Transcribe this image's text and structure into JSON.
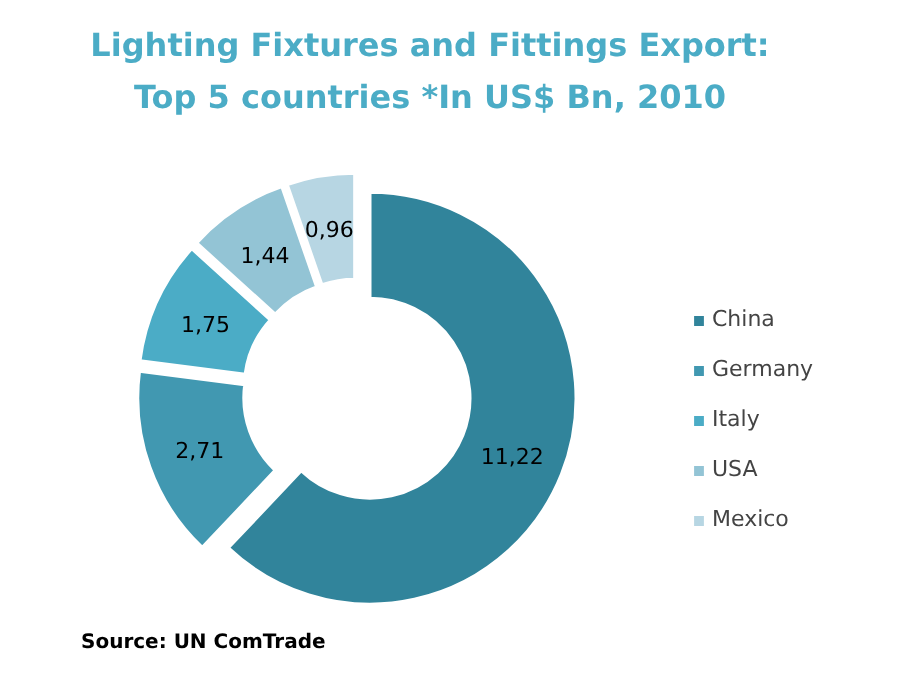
{
  "chart_data": {
    "type": "donut",
    "title": "Lighting Fixtures and Fittings Export:",
    "subtitle": "Top 5 countries *In US$ Bn, 2010",
    "categories": [
      "China",
      "Germany",
      "Italy",
      "USA",
      "Mexico"
    ],
    "values": [
      11.22,
      2.71,
      1.75,
      1.44,
      0.96
    ],
    "value_labels": [
      "11,22",
      "2,71",
      "1,75",
      "1,44",
      "0,96"
    ],
    "colors": [
      "#31849b",
      "#4198b1",
      "#4bacc6",
      "#93c4d5",
      "#b7d6e3"
    ],
    "legend": "right",
    "annotations": [
      "Source: UN ComTrade"
    ]
  }
}
